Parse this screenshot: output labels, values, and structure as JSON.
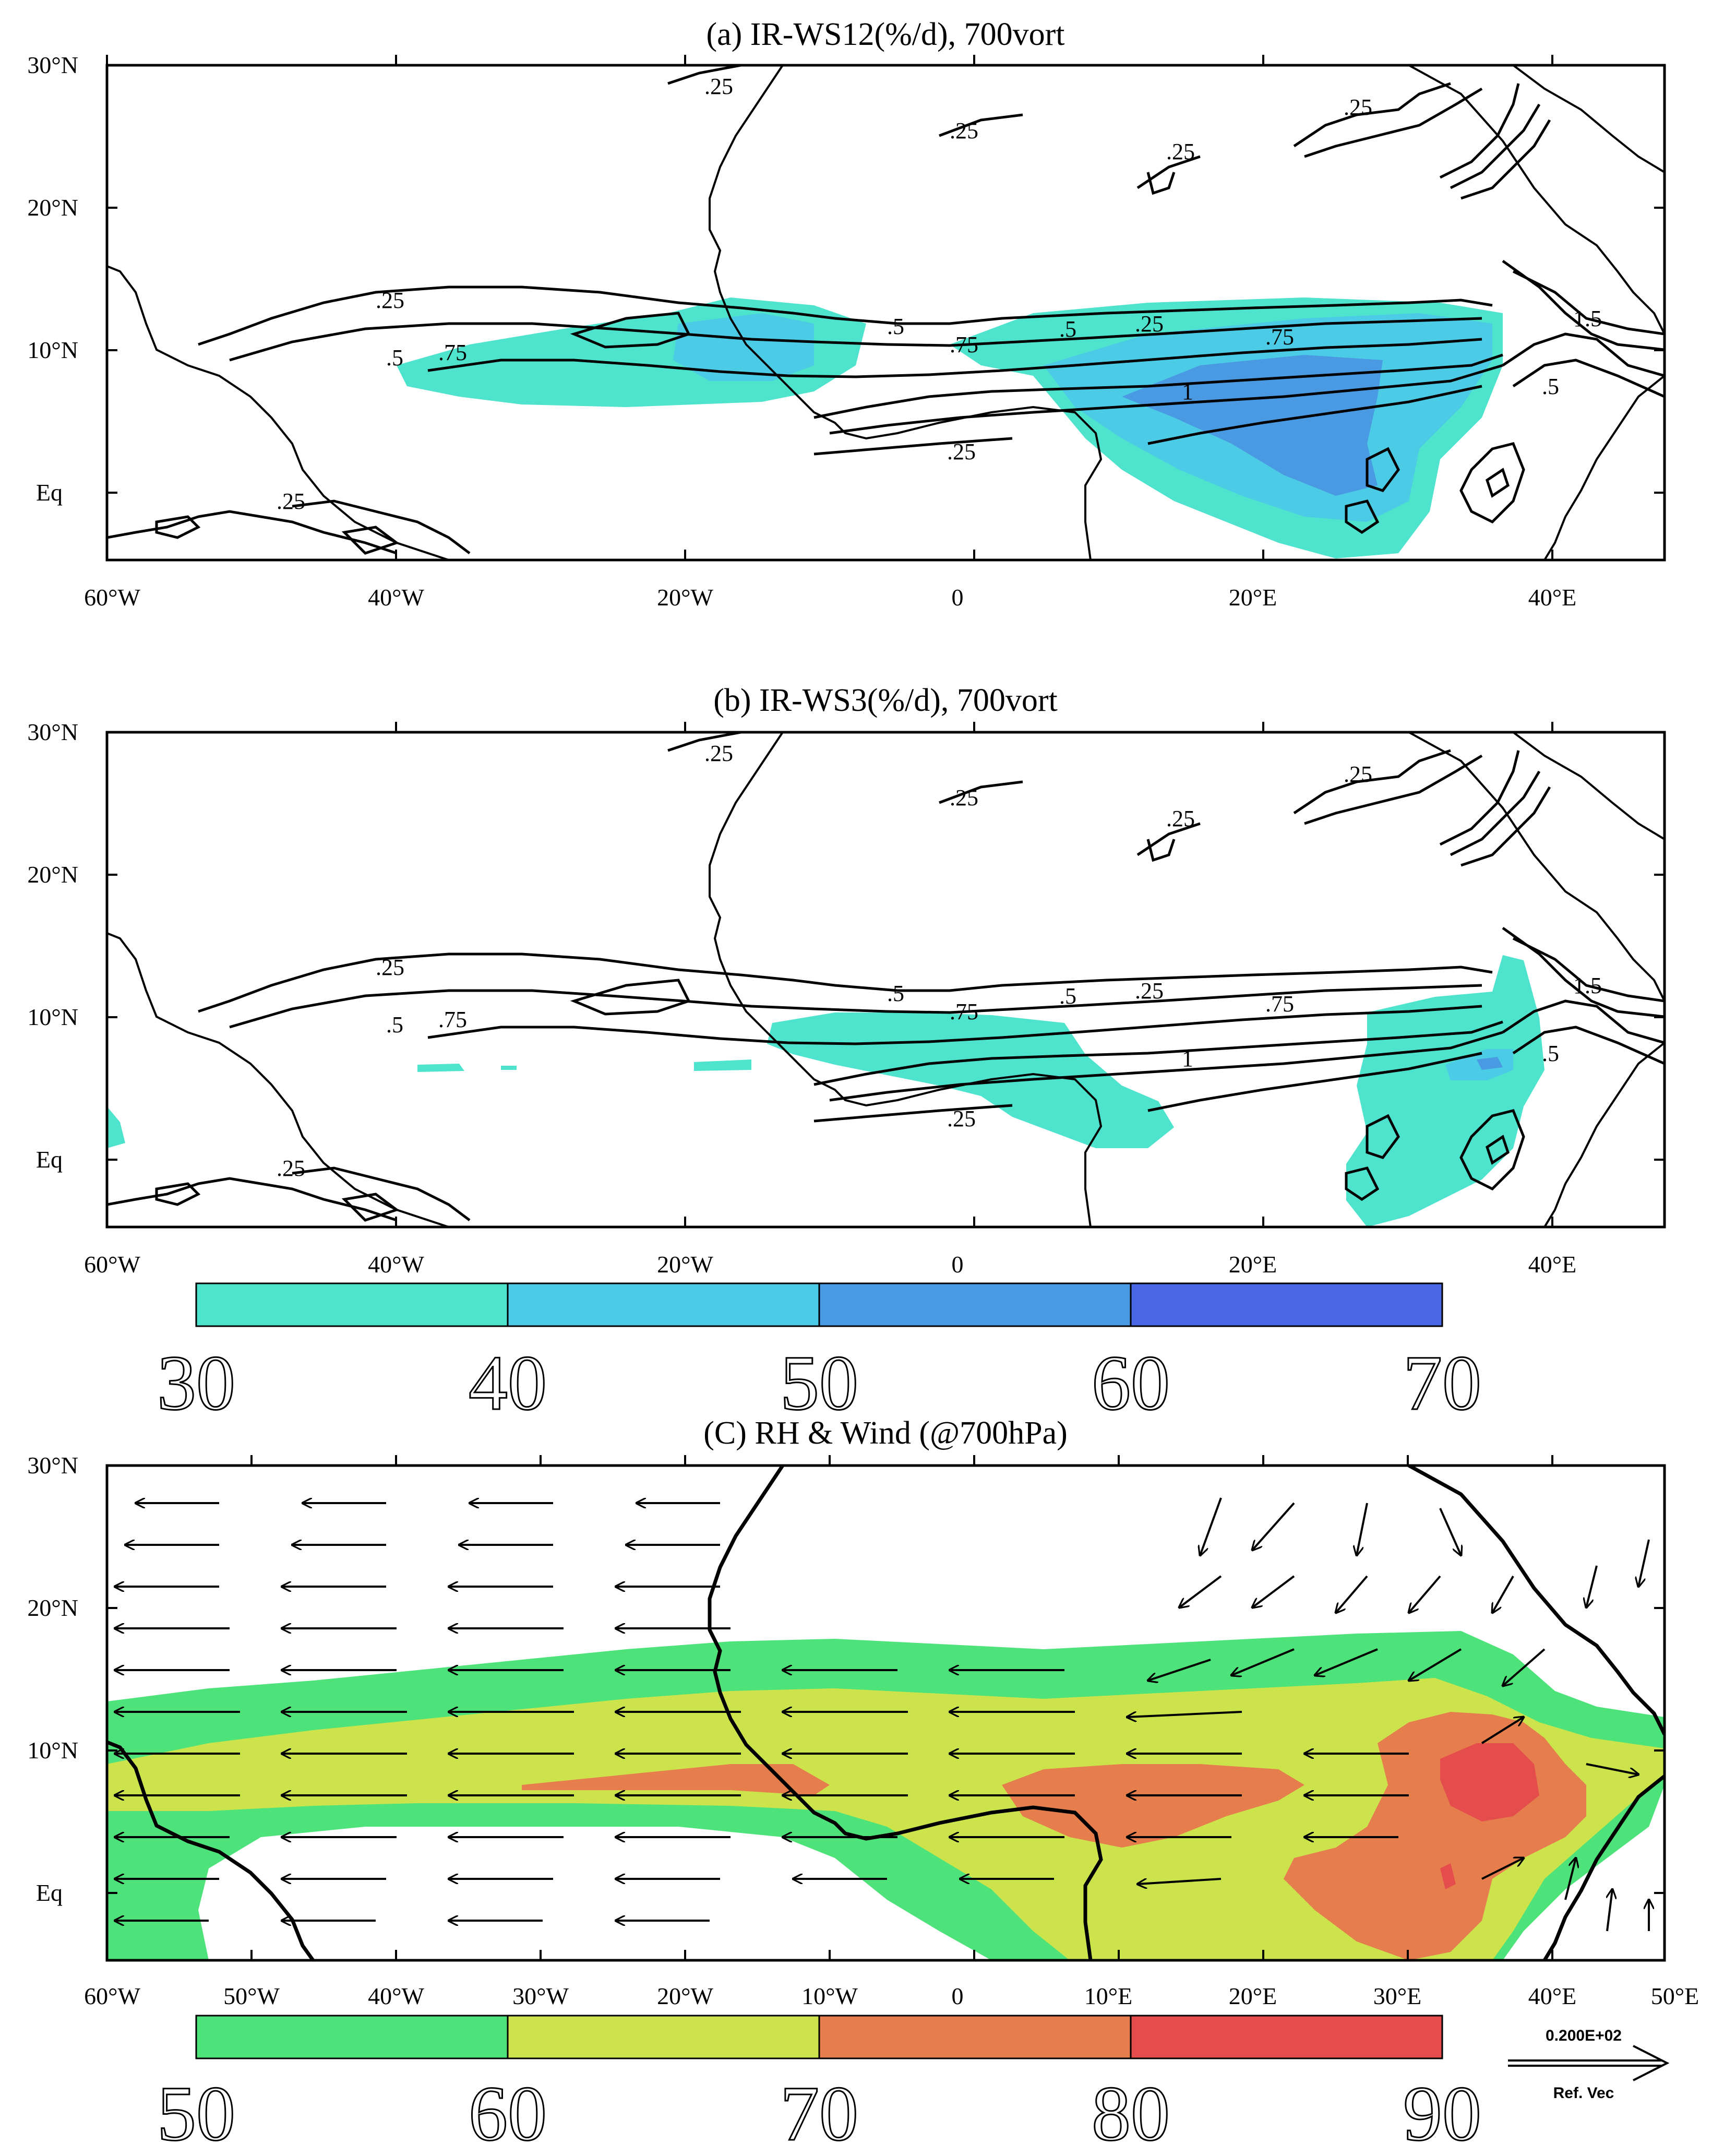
{
  "panels": [
    {
      "title": "(a) IR-WS12(%/d), 700vort",
      "x_ticks": [
        "60°W",
        "40°W",
        "20°W",
        "0",
        "20°E",
        "40°E"
      ],
      "y_ticks": [
        "30°N",
        "20°N",
        "10°N",
        "Eq"
      ],
      "contour_labels": [
        ".25",
        ".25",
        ".25",
        ".25",
        ".25",
        ".5",
        ".75",
        ".5",
        ".75",
        ".5",
        ".25",
        ".75",
        "1",
        ".25",
        "1.5",
        ".5",
        ".25"
      ]
    },
    {
      "title": "(b) IR-WS3(%/d), 700vort",
      "x_ticks": [
        "60°W",
        "40°W",
        "20°W",
        "0",
        "20°E",
        "40°E"
      ],
      "y_ticks": [
        "30°N",
        "20°N",
        "10°N",
        "Eq"
      ],
      "contour_labels": [
        ".25",
        ".25",
        ".25",
        ".25",
        ".25",
        ".5",
        ".75",
        ".5",
        ".75",
        ".5",
        ".25",
        ".75",
        "1",
        ".25",
        "1.5",
        ".5",
        ".25"
      ]
    },
    {
      "title": "(C) RH & Wind (@700hPa)",
      "x_ticks": [
        "60°W",
        "50°W",
        "40°W",
        "30°W",
        "20°W",
        "10°W",
        "0",
        "10°E",
        "20°E",
        "30°E",
        "40°E",
        "50°E"
      ],
      "y_ticks": [
        "30°N",
        "20°N",
        "10°N",
        "Eq"
      ]
    }
  ],
  "colorbar_1": {
    "labels": [
      "30",
      "40",
      "50",
      "60",
      "70"
    ],
    "colors": [
      "#4de3cc",
      "#4ccbe6",
      "#4a99e3",
      "#4a67e6"
    ]
  },
  "colorbar_2": {
    "labels": [
      "50",
      "60",
      "70",
      "80",
      "90"
    ],
    "colors": [
      "#4de37a",
      "#cde34c",
      "#e57e4c",
      "#e54c4c"
    ]
  },
  "ref_vector": {
    "value": "0.200E+02",
    "label": "Ref. Vec"
  },
  "colors": {
    "shade_30_40": "#4de3cc",
    "shade_40_50": "#4ccbe6",
    "shade_50_60": "#4a99e3",
    "rh_50_60": "#4de37a",
    "rh_60_70": "#cde34c",
    "rh_70_80": "#e57e4c",
    "rh_80_90": "#e54c4c"
  }
}
